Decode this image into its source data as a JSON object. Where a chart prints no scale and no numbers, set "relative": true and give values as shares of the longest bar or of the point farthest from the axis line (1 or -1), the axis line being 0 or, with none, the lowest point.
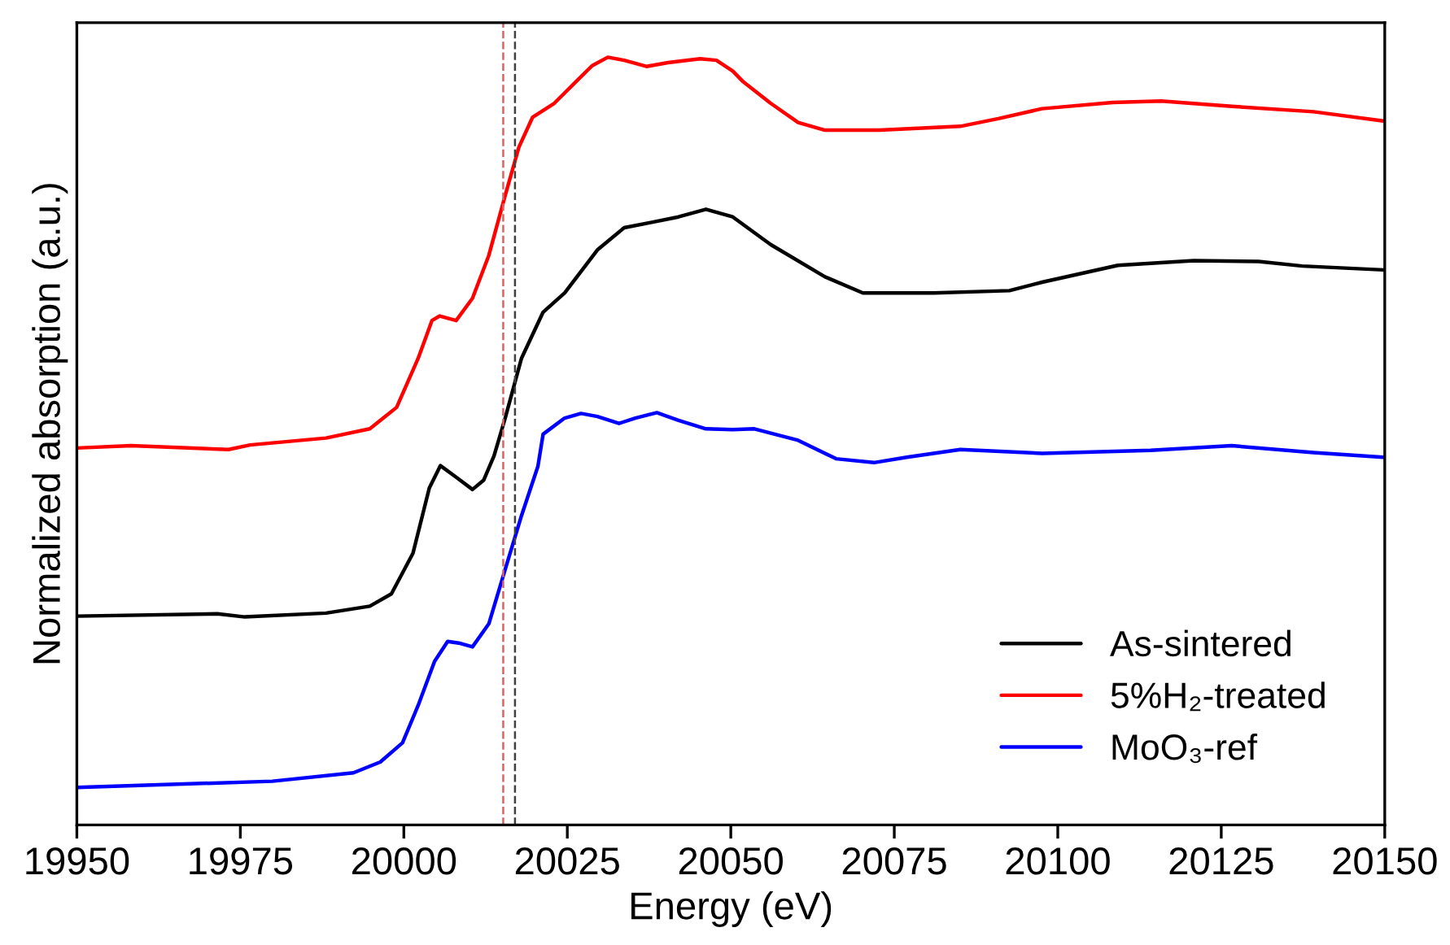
{
  "chart_data": {
    "type": "line",
    "relative": true,
    "xlabel": "Energy (eV)",
    "ylabel": "Normalized absorption (a.u.)",
    "xlim": [
      19950,
      20150
    ],
    "xticks": [
      19950,
      19975,
      20000,
      20025,
      20050,
      20075,
      20100,
      20125,
      20150
    ],
    "tick_labels": "x",
    "grid": false,
    "legend": "bottom right",
    "line_style": "solid",
    "marker": "none",
    "series": [
      {
        "name": "As-sintered",
        "color": "#000000",
        "x": [
          19950,
          19971.5,
          19975.7,
          19988.1,
          19994.8,
          19998.1,
          20001.4,
          20003.9,
          20005.6,
          20008.0,
          20010.5,
          20012.2,
          20013.8,
          20015.5,
          20018.0,
          20021.3,
          20024.6,
          20029.6,
          20033.7,
          20037.9,
          20042.0,
          20046.2,
          20050.3,
          20056.1,
          20064.4,
          20070.2,
          20081.0,
          20092.6,
          20097.6,
          20109.2,
          20120.8,
          20130.7,
          20137.4,
          20149.8
        ],
        "values": [
          0.272,
          0.275,
          0.271,
          0.276,
          0.285,
          0.301,
          0.354,
          0.439,
          0.468,
          0.453,
          0.437,
          0.449,
          0.481,
          0.53,
          0.608,
          0.668,
          0.693,
          0.749,
          0.778,
          0.785,
          0.792,
          0.802,
          0.792,
          0.756,
          0.714,
          0.693,
          0.693,
          0.696,
          0.707,
          0.729,
          0.735,
          0.734,
          0.728,
          0.723
        ]
      },
      {
        "name": "5%H₂-treated",
        "color": "#ff0000",
        "x": [
          19950,
          19958.3,
          19973.2,
          19976.5,
          19988.1,
          19994.8,
          19998.9,
          20002.2,
          20004.3,
          20005.5,
          20008.0,
          20010.5,
          20013.0,
          20015.5,
          20017.6,
          20019.7,
          20023.0,
          20026.3,
          20028.8,
          20031.2,
          20033.7,
          20037.1,
          20040.4,
          20045.3,
          20047.8,
          20050.3,
          20051.9,
          20056.1,
          20060.3,
          20064.4,
          20072.7,
          20085.1,
          20090.9,
          20097.6,
          20108.4,
          20115.8,
          20126.6,
          20139.1,
          20149.8
        ],
        "values": [
          0.491,
          0.494,
          0.489,
          0.495,
          0.504,
          0.516,
          0.544,
          0.608,
          0.657,
          0.663,
          0.657,
          0.686,
          0.742,
          0.82,
          0.883,
          0.922,
          0.94,
          0.968,
          0.989,
          1.0,
          0.996,
          0.988,
          0.993,
          0.998,
          0.996,
          0.982,
          0.968,
          0.94,
          0.915,
          0.905,
          0.905,
          0.91,
          0.92,
          0.933,
          0.941,
          0.943,
          0.936,
          0.929,
          0.917
        ]
      },
      {
        "name": "MoO₃-ref",
        "color": "#0000ff",
        "x": [
          19950,
          19979.9,
          19992.3,
          19996.4,
          19999.8,
          20002.2,
          20004.7,
          20006.7,
          20008.4,
          20010.5,
          20013.0,
          20015.5,
          20018.0,
          20020.5,
          20021.3,
          20024.6,
          20027.1,
          20029.6,
          20032.9,
          20035.4,
          20038.7,
          20042.0,
          20046.2,
          20050.3,
          20053.6,
          20060.3,
          20066.1,
          20071.9,
          20076.9,
          20085.1,
          20097.6,
          20114.2,
          20126.6,
          20139.1,
          20149.8
        ],
        "values": [
          0.049,
          0.057,
          0.068,
          0.082,
          0.107,
          0.156,
          0.213,
          0.239,
          0.237,
          0.232,
          0.262,
          0.333,
          0.403,
          0.467,
          0.509,
          0.53,
          0.536,
          0.532,
          0.523,
          0.53,
          0.537,
          0.527,
          0.516,
          0.515,
          0.516,
          0.501,
          0.477,
          0.472,
          0.479,
          0.489,
          0.484,
          0.488,
          0.494,
          0.485,
          0.479
        ]
      }
    ],
    "ref_lines": [
      {
        "axis": "x",
        "value": 20015.2,
        "color": "#e06060",
        "line_style": "dashed"
      },
      {
        "axis": "x",
        "value": 20017.0,
        "color": "#404040",
        "line_style": "dashed"
      }
    ]
  }
}
